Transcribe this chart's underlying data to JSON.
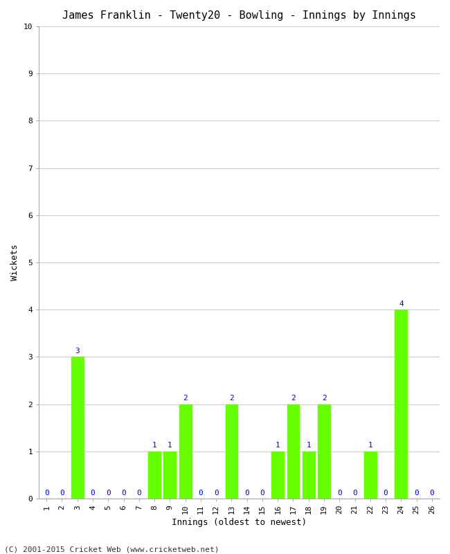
{
  "title": "James Franklin - Twenty20 - Bowling - Innings by Innings",
  "xlabel": "Innings (oldest to newest)",
  "ylabel": "Wickets",
  "footnote": "(C) 2001-2015 Cricket Web (www.cricketweb.net)",
  "innings": [
    1,
    2,
    3,
    4,
    5,
    6,
    7,
    8,
    9,
    10,
    11,
    12,
    13,
    14,
    15,
    16,
    17,
    18,
    19,
    20,
    21,
    22,
    23,
    24,
    25,
    26
  ],
  "wickets": [
    0,
    0,
    3,
    0,
    0,
    0,
    0,
    1,
    1,
    2,
    0,
    0,
    2,
    0,
    0,
    1,
    2,
    1,
    2,
    0,
    0,
    1,
    0,
    4,
    0,
    0
  ],
  "bar_color": "#66ff00",
  "bar_edge_color": "#66ff00",
  "label_color": "#0000cc",
  "background_color": "#ffffff",
  "grid_color": "#cccccc",
  "ylim": [
    0,
    10
  ],
  "yticks": [
    0,
    1,
    2,
    3,
    4,
    5,
    6,
    7,
    8,
    9,
    10
  ],
  "title_fontsize": 11,
  "axis_label_fontsize": 9,
  "tick_fontsize": 8,
  "value_label_fontsize": 8,
  "footnote_fontsize": 8
}
